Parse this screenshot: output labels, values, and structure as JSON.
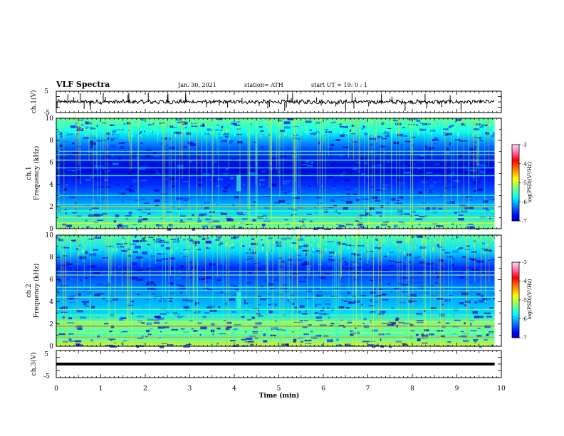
{
  "header": {
    "title": "VLF Spectra",
    "date": "Jan. 30, 2021",
    "station": "station= ATH",
    "start_ut": "start  UT =   19: 0  : 1"
  },
  "chart_data": [
    {
      "type": "line",
      "name": "ch.1 waveform",
      "ylabel": "ch.1(V)",
      "ylim": [
        -5,
        5
      ],
      "yticks": [
        "5",
        "-5"
      ],
      "baseline": 0,
      "xlim": [
        0,
        10
      ],
      "trace_end_min": 9.85
    },
    {
      "type": "heatmap",
      "name": "ch.1 spectrogram",
      "ylabel": "ch.1\nFrequency (kHz)",
      "ylim": [
        0,
        10
      ],
      "yticks": [
        "0",
        "2",
        "4",
        "6",
        "8",
        "10"
      ],
      "xlim": [
        0,
        9.85
      ],
      "colorbar": {
        "label": "log(PSD)(V²/Hz)",
        "range": [
          -7,
          -3
        ],
        "ticks": [
          "-3",
          "-4",
          "-5",
          "-6",
          "-7"
        ]
      },
      "event_start_min": 4.05
    },
    {
      "type": "heatmap",
      "name": "ch.2 spectrogram",
      "ylabel": "ch.2\nFrequency (kHz)",
      "ylim": [
        0,
        10
      ],
      "yticks": [
        "0",
        "2",
        "4",
        "6",
        "8",
        "10"
      ],
      "xlim": [
        0,
        9.85
      ],
      "colorbar": {
        "label": "log(PSD)(V²/Hz)",
        "range": [
          -7,
          -3
        ],
        "ticks": [
          "-3",
          "-4",
          "-5",
          "-6",
          "-7"
        ]
      },
      "event_start_min": 4.05
    },
    {
      "type": "line",
      "name": "ch.3 waveform",
      "ylabel": "ch.3(V)",
      "ylim": [
        -5,
        5
      ],
      "yticks": [
        "5",
        "-5"
      ],
      "baseline": 0,
      "xlim": [
        0,
        10
      ],
      "trace_end_min": 9.85
    }
  ],
  "xaxis": {
    "label": "Time  (min)",
    "ticks": [
      "0",
      "1",
      "2",
      "3",
      "4",
      "5",
      "6",
      "7",
      "8",
      "9",
      "10"
    ],
    "range": [
      0,
      10
    ]
  },
  "colors": {
    "cmap": [
      "#00007f",
      "#0000ff",
      "#0080ff",
      "#00ffff",
      "#80ff80",
      "#ffff00",
      "#ff8000",
      "#ff0000",
      "#ff80c0",
      "#ffffff"
    ],
    "axis": "#000000"
  }
}
